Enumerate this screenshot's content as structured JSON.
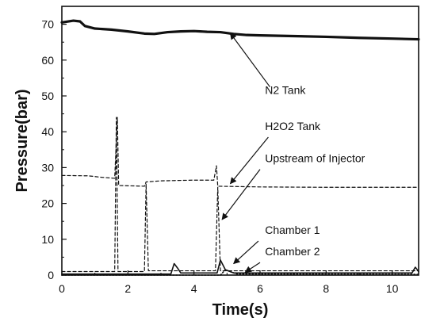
{
  "chart_data": {
    "type": "line",
    "xlabel": "Time(s)",
    "ylabel": "Pressure(bar)",
    "xlim": [
      0,
      10.8
    ],
    "ylim": [
      0,
      75
    ],
    "xticks": [
      0,
      2,
      4,
      6,
      8,
      10
    ],
    "yticks": [
      0,
      10,
      20,
      30,
      40,
      50,
      60,
      70
    ],
    "grid": false,
    "series": [
      {
        "name": "N2 Tank",
        "style": "solid-thick",
        "points": [
          [
            0,
            70.5
          ],
          [
            0.35,
            71
          ],
          [
            0.55,
            70.8
          ],
          [
            0.7,
            69.5
          ],
          [
            1.0,
            68.8
          ],
          [
            1.5,
            68.5
          ],
          [
            2.0,
            68
          ],
          [
            2.5,
            67.4
          ],
          [
            2.8,
            67.3
          ],
          [
            3.2,
            67.8
          ],
          [
            3.6,
            68
          ],
          [
            4.0,
            68.1
          ],
          [
            4.4,
            67.9
          ],
          [
            4.8,
            67.8
          ],
          [
            5.2,
            67.3
          ],
          [
            5.6,
            67
          ],
          [
            6.0,
            66.9
          ],
          [
            7.0,
            66.7
          ],
          [
            8.0,
            66.5
          ],
          [
            9.0,
            66.2
          ],
          [
            10.0,
            66
          ],
          [
            10.8,
            65.8
          ]
        ]
      },
      {
        "name": "H2O2 Tank",
        "style": "dashed",
        "points": [
          [
            0,
            27.8
          ],
          [
            0.8,
            27.7
          ],
          [
            1.2,
            27.3
          ],
          [
            1.6,
            27
          ],
          [
            1.68,
            44
          ],
          [
            1.72,
            25
          ],
          [
            2.5,
            24.8
          ],
          [
            2.55,
            26
          ],
          [
            3.0,
            26.3
          ],
          [
            4.0,
            26.5
          ],
          [
            4.6,
            26.5
          ],
          [
            4.68,
            30.5
          ],
          [
            4.72,
            24.8
          ],
          [
            6.0,
            24.6
          ],
          [
            8.0,
            24.5
          ],
          [
            10.0,
            24.5
          ],
          [
            10.8,
            24.5
          ]
        ]
      },
      {
        "name": "Upstream of Injector",
        "style": "dashed",
        "points": [
          [
            0,
            1
          ],
          [
            1.6,
            1
          ],
          [
            1.65,
            44
          ],
          [
            1.7,
            1
          ],
          [
            2.5,
            1
          ],
          [
            2.55,
            25.5
          ],
          [
            2.62,
            1.2
          ],
          [
            4.65,
            1.2
          ],
          [
            4.72,
            24.5
          ],
          [
            4.8,
            1.2
          ],
          [
            10.8,
            1.2
          ]
        ]
      },
      {
        "name": "Chamber 1",
        "style": "solid",
        "points": [
          [
            0,
            0.3
          ],
          [
            3.3,
            0.3
          ],
          [
            3.4,
            3.2
          ],
          [
            3.5,
            2
          ],
          [
            3.6,
            0.6
          ],
          [
            4.7,
            0.6
          ],
          [
            4.8,
            4.2
          ],
          [
            4.95,
            1.5
          ],
          [
            5.2,
            0.6
          ],
          [
            10.6,
            0.6
          ],
          [
            10.7,
            2.2
          ],
          [
            10.8,
            1
          ]
        ]
      },
      {
        "name": "Chamber 2",
        "style": "dotted",
        "points": [
          [
            0,
            0
          ],
          [
            4.8,
            0
          ],
          [
            4.95,
            1.5
          ],
          [
            5.3,
            0.3
          ],
          [
            10.8,
            0.2
          ]
        ]
      }
    ],
    "annotations": [
      {
        "label": "N2 Tank",
        "text_x": 6.15,
        "text_y": 50.5,
        "arrow_from": [
          6.3,
          52.5
        ],
        "arrow_to": [
          5.1,
          67.5
        ]
      },
      {
        "label": "H2O2 Tank",
        "text_x": 6.15,
        "text_y": 40.5,
        "arrow_from": [
          6.25,
          38.5
        ],
        "arrow_to": [
          5.1,
          25.5
        ]
      },
      {
        "label": "Upstream of Injector",
        "text_x": 6.15,
        "text_y": 31.5,
        "arrow_from": [
          6.0,
          29.5
        ],
        "arrow_to": [
          4.85,
          15.5
        ]
      },
      {
        "label": "Chamber 1",
        "text_x": 6.15,
        "text_y": 11.5,
        "arrow_from": [
          5.95,
          9.5
        ],
        "arrow_to": [
          5.2,
          3.2
        ]
      },
      {
        "label": "Chamber 2",
        "text_x": 6.15,
        "text_y": 5.5,
        "arrow_from": [
          6.0,
          3.5
        ],
        "arrow_to": [
          5.55,
          0.8
        ]
      }
    ]
  }
}
